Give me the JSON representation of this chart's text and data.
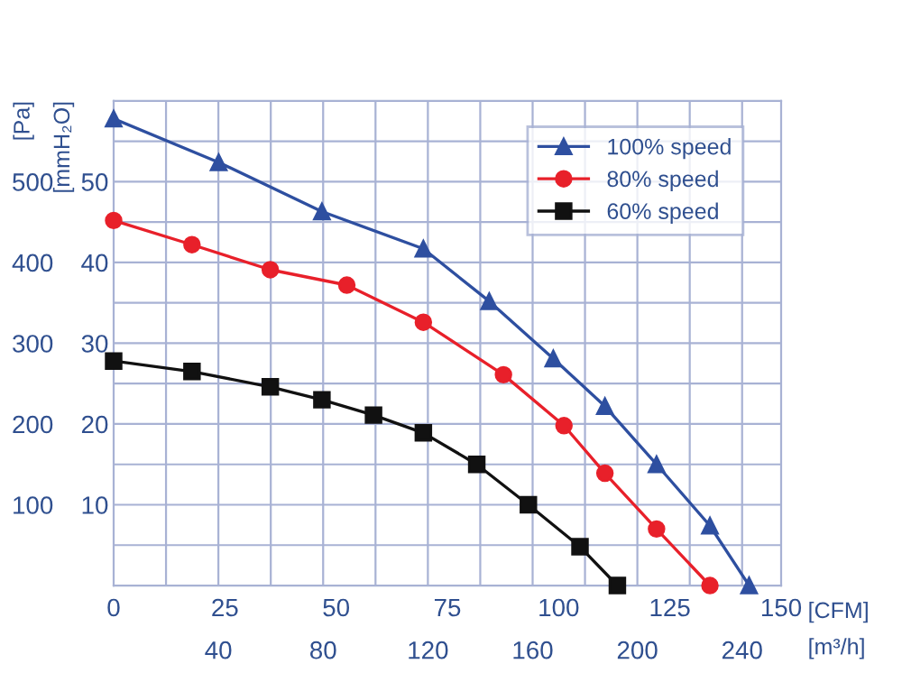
{
  "chart_data": {
    "type": "line",
    "xlabel": "[CFM]",
    "x2label": "[m³/h]",
    "ylabel": "[Pa]",
    "y2label": "[mmH₂O]",
    "xlim": [
      0,
      150
    ],
    "xticks": [
      0,
      25,
      50,
      75,
      100,
      125,
      150
    ],
    "x2lim": [
      0,
      254.9
    ],
    "x2ticks": [
      {
        "value": 20,
        "label": null
      },
      40,
      {
        "value": 60,
        "label": null
      },
      80,
      {
        "value": 100,
        "label": null
      },
      120,
      {
        "value": 140,
        "label": null
      },
      160,
      {
        "value": 180,
        "label": null
      },
      200,
      {
        "value": 220,
        "label": null
      },
      240
    ],
    "ylim": [
      0,
      600
    ],
    "yticks": [
      {
        "value": 50,
        "label": null
      },
      100,
      {
        "value": 150,
        "label": null
      },
      200,
      {
        "value": 250,
        "label": null
      },
      300,
      {
        "value": 350,
        "label": null
      },
      400,
      {
        "value": 450,
        "label": null
      },
      500,
      {
        "value": 550,
        "label": null
      }
    ],
    "y2lim": [
      0,
      60
    ],
    "y2ticks": [
      10,
      20,
      30,
      40,
      50
    ],
    "grid": true,
    "legend": "top right",
    "line_style": "solid",
    "series": [
      {
        "name": "100% speed",
        "color": "#2e4fa0",
        "marker": "triangle",
        "x": [
          0,
          23.6,
          46.8,
          69.6,
          84.4,
          98.8,
          110.4,
          122,
          134,
          142.8
        ],
        "values": [
          578,
          524,
          463,
          417,
          352,
          281,
          222,
          150,
          74,
          0
        ]
      },
      {
        "name": "80% speed",
        "color": "#e8202a",
        "marker": "circle",
        "x": [
          0,
          17.6,
          35.2,
          52.4,
          69.6,
          87.6,
          101.2,
          110.4,
          122,
          134
        ],
        "values": [
          452,
          422,
          391,
          372,
          326,
          261,
          198,
          139,
          70,
          0
        ]
      },
      {
        "name": "60% speed",
        "color": "#111111",
        "marker": "square",
        "x": [
          0,
          17.6,
          35.2,
          46.8,
          58.4,
          69.6,
          81.6,
          93.2,
          104.8,
          113.2
        ],
        "values": [
          278,
          265,
          246,
          230,
          211,
          189,
          150,
          100,
          48,
          0
        ]
      }
    ]
  }
}
